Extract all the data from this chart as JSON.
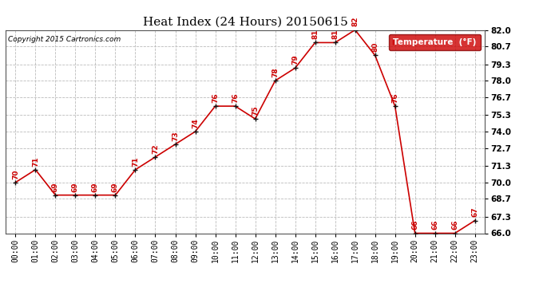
{
  "title": "Heat Index (24 Hours) 20150615",
  "copyright": "Copyright 2015 Cartronics.com",
  "legend_label": "Temperature  (°F)",
  "hours": [
    "00:00",
    "01:00",
    "02:00",
    "03:00",
    "04:00",
    "05:00",
    "06:00",
    "07:00",
    "08:00",
    "09:00",
    "10:00",
    "11:00",
    "12:00",
    "13:00",
    "14:00",
    "15:00",
    "16:00",
    "17:00",
    "18:00",
    "19:00",
    "20:00",
    "21:00",
    "22:00",
    "23:00"
  ],
  "values": [
    70,
    71,
    69,
    69,
    69,
    69,
    71,
    72,
    73,
    74,
    76,
    76,
    75,
    78,
    79,
    81,
    81,
    82,
    80,
    76,
    66,
    66,
    66,
    67
  ],
  "line_color": "#cc0000",
  "marker_color": "#111111",
  "grid_color": "#bbbbbb",
  "bg_color": "#ffffff",
  "legend_bg": "#cc0000",
  "legend_text_color": "#ffffff",
  "ylim_min": 66.0,
  "ylim_max": 82.0,
  "yticks": [
    66.0,
    67.3,
    68.7,
    70.0,
    71.3,
    72.7,
    74.0,
    75.3,
    76.7,
    78.0,
    79.3,
    80.7,
    82.0
  ],
  "title_fontsize": 11,
  "annotation_fontsize": 6.5,
  "annotation_color": "#cc0000",
  "tick_fontsize": 7,
  "ytick_fontsize": 7.5
}
